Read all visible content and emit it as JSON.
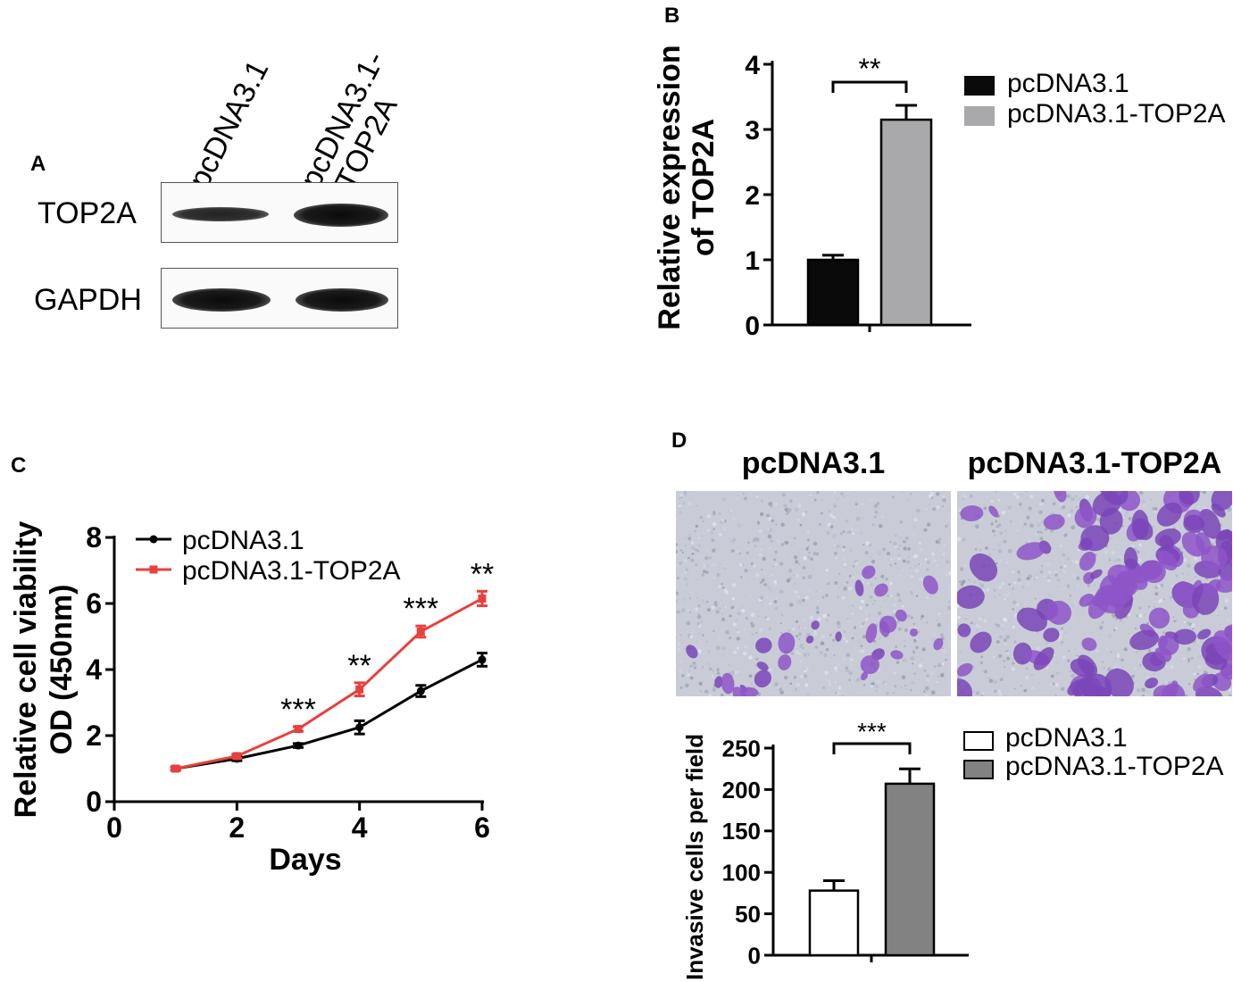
{
  "panel_labels": {
    "a": "A",
    "b": "B",
    "c": "C",
    "d": "D"
  },
  "panel_a": {
    "lanes": [
      {
        "lines": [
          "pcDNA3.1"
        ]
      },
      {
        "lines": [
          "pcDNA3.1-",
          "TOP2A"
        ]
      }
    ],
    "rows": [
      {
        "label": "TOP2A",
        "band_intensity": [
          0.55,
          1.0
        ]
      },
      {
        "label": "GAPDH",
        "band_intensity": [
          1.0,
          1.0
        ]
      }
    ]
  },
  "panel_d_images": {
    "titles": [
      "pcDNA3.1",
      "pcDNA3.1-TOP2A"
    ]
  },
  "chart_data": [
    {
      "panel": "B",
      "type": "bar",
      "categories": [
        "pcDNA3.1",
        "pcDNA3.1-TOP2A"
      ],
      "series": [
        {
          "values": [
            1.0,
            3.15
          ],
          "errors": [
            0.07,
            0.22
          ]
        }
      ],
      "colors": [
        "#0a0a0a",
        "#a9a9ab"
      ],
      "ylabel": "Relative expression\nof TOP2A",
      "ylim": [
        0,
        4
      ],
      "yticks": [
        "0",
        "1",
        "2",
        "3",
        "4"
      ],
      "significance": "**",
      "legend": [
        "pcDNA3.1",
        "pcDNA3.1-TOP2A"
      ],
      "legend_position": "right"
    },
    {
      "panel": "C",
      "type": "line",
      "x": [
        1,
        2,
        3,
        4,
        5,
        6
      ],
      "series": [
        {
          "name": "pcDNA3.1",
          "color": "#000000",
          "marker": "circle",
          "values": [
            1.0,
            1.3,
            1.7,
            2.25,
            3.35,
            4.3
          ],
          "errors": [
            0.05,
            0.06,
            0.06,
            0.2,
            0.17,
            0.2
          ]
        },
        {
          "name": "pcDNA3.1-TOP2A",
          "color": "#e8403d",
          "marker": "square",
          "values": [
            1.0,
            1.38,
            2.2,
            3.4,
            5.15,
            6.15
          ],
          "errors": [
            0.05,
            0.06,
            0.07,
            0.2,
            0.17,
            0.22
          ]
        }
      ],
      "annotations": [
        {
          "x": 3,
          "text": "***"
        },
        {
          "x": 4,
          "text": "**"
        },
        {
          "x": 5,
          "text": "***"
        },
        {
          "x": 6,
          "text": "**"
        }
      ],
      "xlabel": "Days",
      "ylabel": "Relative cell viability\nOD (450nm)",
      "xlim": [
        0,
        6
      ],
      "ylim": [
        0,
        8
      ],
      "xticks": [
        "0",
        "2",
        "4",
        "6"
      ],
      "yticks": [
        "0",
        "2",
        "4",
        "6",
        "8"
      ],
      "legend_position": "top-left"
    },
    {
      "panel": "D",
      "type": "bar",
      "categories": [
        "pcDNA3.1",
        "pcDNA3.1-TOP2A"
      ],
      "series": [
        {
          "values": [
            78,
            207
          ],
          "errors": [
            12,
            18
          ]
        }
      ],
      "colors": [
        "#ffffff",
        "#828282"
      ],
      "ylabel": "Invasive cells per field",
      "ylim": [
        0,
        250
      ],
      "yticks": [
        "0",
        "50",
        "100",
        "150",
        "200",
        "250"
      ],
      "significance": "***",
      "legend": [
        "pcDNA3.1",
        "pcDNA3.1-TOP2A"
      ],
      "legend_position": "right"
    }
  ]
}
